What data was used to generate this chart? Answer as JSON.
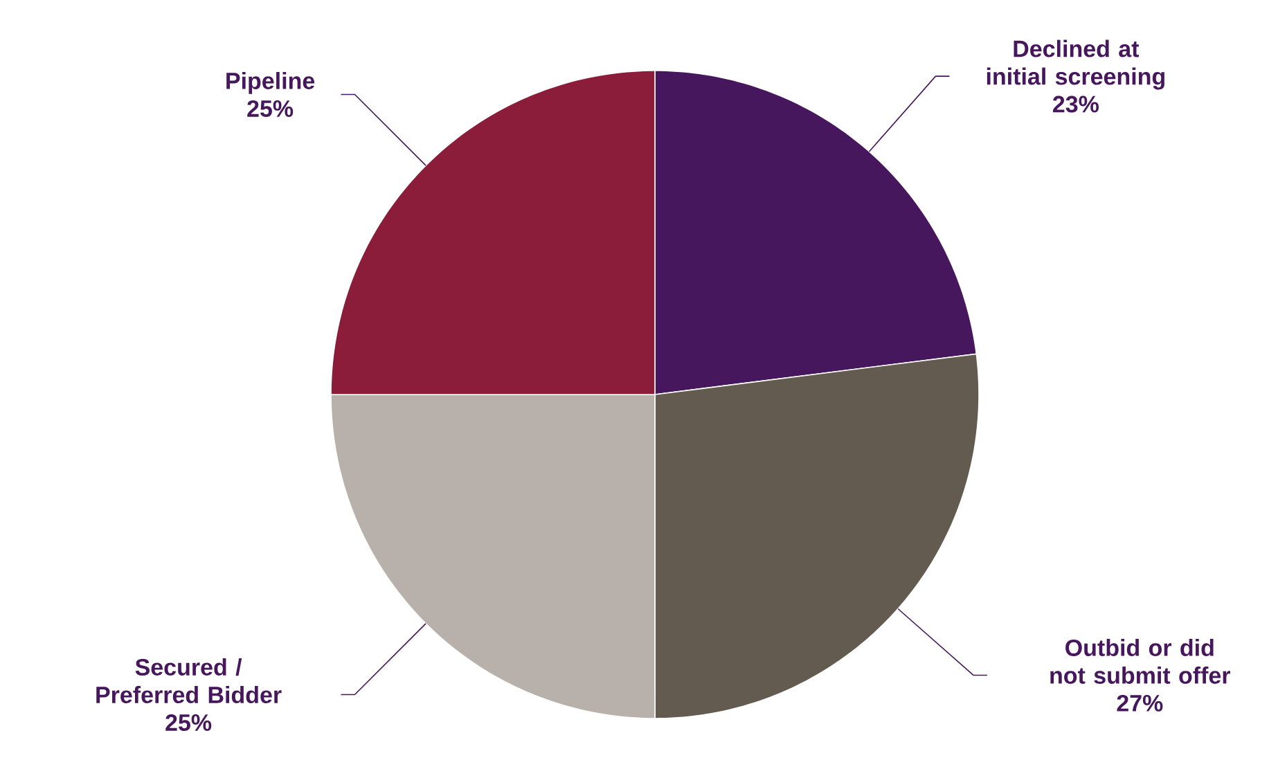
{
  "chart_data": {
    "type": "pie",
    "categories": [
      "Declined at initial screening",
      "Outbid or did not submit offer",
      "Secured / Preferred Bidder",
      "Pipeline"
    ],
    "values": [
      23,
      27,
      25,
      25
    ],
    "value_labels": [
      "23%",
      "27%",
      "25%",
      "25%"
    ],
    "colors": [
      "#46175c",
      "#635a50",
      "#b8b0aa",
      "#8b1d3b"
    ]
  }
}
